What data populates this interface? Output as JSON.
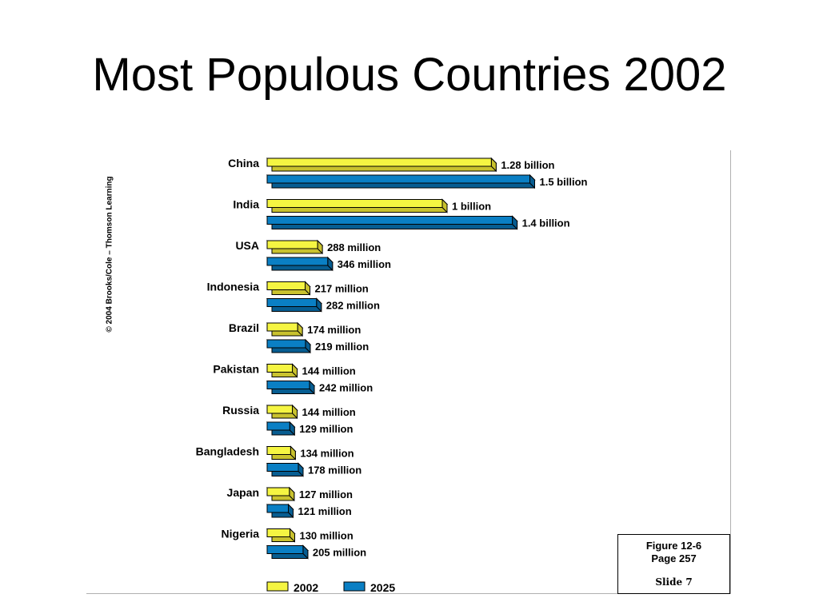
{
  "slide": {
    "title": "Most Populous Countries 2002",
    "copyright": "© 2004 Brooks/Cole – Thomson Learning",
    "figure_label": "Figure 12-6",
    "page_label": "Page 257",
    "slide_label": "Slide 7"
  },
  "chart_data": {
    "type": "bar",
    "orientation": "horizontal",
    "title": "",
    "xlabel": "",
    "ylabel": "",
    "unit": "millions",
    "categories": [
      "China",
      "India",
      "USA",
      "Indonesia",
      "Brazil",
      "Pakistan",
      "Russia",
      "Bangladesh",
      "Japan",
      "Nigeria"
    ],
    "series": [
      {
        "name": "2002",
        "color": "#f5f542",
        "values": [
          1280,
          1000,
          288,
          217,
          174,
          144,
          144,
          134,
          127,
          130
        ],
        "labels": [
          "1.28 billion",
          "1 billion",
          "288 million",
          "217 million",
          "174 million",
          "144 million",
          "144 million",
          "134 million",
          "127 million",
          "130 million"
        ]
      },
      {
        "name": "2025",
        "color": "#0a7fc4",
        "values": [
          1500,
          1400,
          346,
          282,
          219,
          242,
          129,
          178,
          121,
          205
        ],
        "labels": [
          "1.5 billion",
          "1.4 billion",
          "346 million",
          "282 million",
          "219 million",
          "242 million",
          "129 million",
          "178 million",
          "121 million",
          "205 million"
        ]
      }
    ],
    "legend": {
      "position": "bottom-left",
      "entries": [
        "2002",
        "2025"
      ]
    },
    "grid": false
  }
}
